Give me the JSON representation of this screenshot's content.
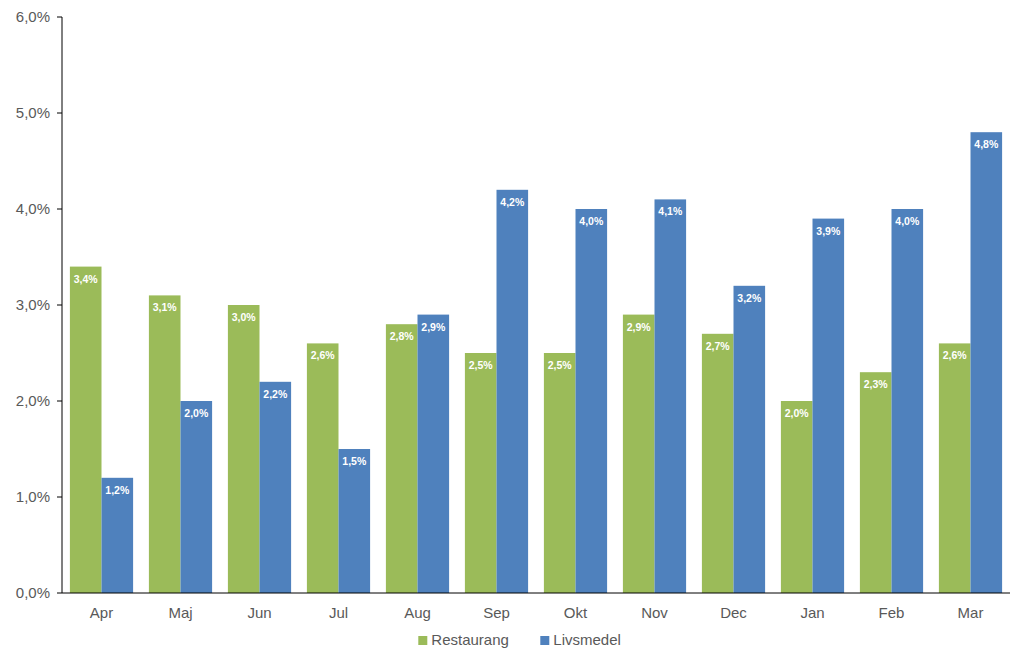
{
  "chart_data": {
    "type": "bar",
    "categories": [
      "Apr",
      "Maj",
      "Jun",
      "Jul",
      "Aug",
      "Sep",
      "Okt",
      "Nov",
      "Dec",
      "Jan",
      "Feb",
      "Mar"
    ],
    "series": [
      {
        "name": "Restaurang",
        "color": "#9bbb59",
        "values": [
          3.4,
          3.1,
          3.0,
          2.6,
          2.8,
          2.5,
          2.5,
          2.9,
          2.7,
          2.0,
          2.3,
          2.6
        ],
        "value_labels": [
          "3,4%",
          "3,1%",
          "3,0%",
          "2,6%",
          "2,8%",
          "2,5%",
          "2,5%",
          "2,9%",
          "2,7%",
          "2,0%",
          "2,3%",
          "2,6%"
        ]
      },
      {
        "name": "Livsmedel",
        "color": "#4f81bd",
        "values": [
          1.2,
          2.0,
          2.2,
          1.5,
          2.9,
          4.2,
          4.0,
          4.1,
          3.2,
          3.9,
          4.0,
          4.8
        ],
        "value_labels": [
          "1,2%",
          "2,0%",
          "2,2%",
          "1,5%",
          "2,9%",
          "4,2%",
          "4,0%",
          "4,1%",
          "3,2%",
          "3,9%",
          "4,0%",
          "4,8%"
        ]
      }
    ],
    "ylim": [
      0,
      6
    ],
    "yticks": [
      {
        "value": 0,
        "label": "0,0%"
      },
      {
        "value": 1,
        "label": "1,0%"
      },
      {
        "value": 2,
        "label": "2,0%"
      },
      {
        "value": 3,
        "label": "3,0%"
      },
      {
        "value": 4,
        "label": "4,0%"
      },
      {
        "value": 5,
        "label": "5,0%"
      },
      {
        "value": 6,
        "label": "6,0%"
      }
    ],
    "grid": false,
    "legend": "bottom",
    "data_labels": true
  }
}
